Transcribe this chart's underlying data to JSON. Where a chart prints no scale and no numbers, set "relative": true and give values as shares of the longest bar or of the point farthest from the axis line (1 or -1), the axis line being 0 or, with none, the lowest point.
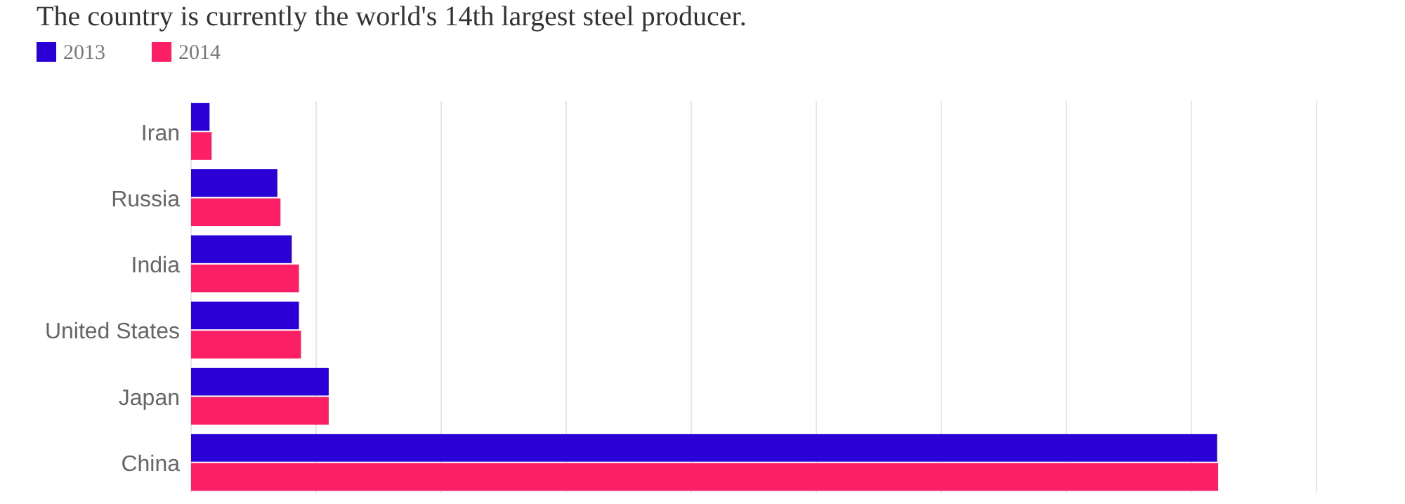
{
  "chart_data": {
    "type": "bar",
    "orientation": "horizontal",
    "relative": true,
    "subtitle": "The country is currently the world's 14th largest steel producer.",
    "categories": [
      "Iran",
      "Russia",
      "India",
      "United States",
      "Japan",
      "China"
    ],
    "series": [
      {
        "name": "2013",
        "color": "#2b00d6",
        "values": [
          0.018,
          0.084,
          0.098,
          0.105,
          0.134,
          0.999
        ]
      },
      {
        "name": "2014",
        "color": "#fc1f66",
        "values": [
          0.02,
          0.087,
          0.105,
          0.107,
          0.134,
          1
        ]
      }
    ],
    "grid": "x",
    "legend": "top left"
  }
}
